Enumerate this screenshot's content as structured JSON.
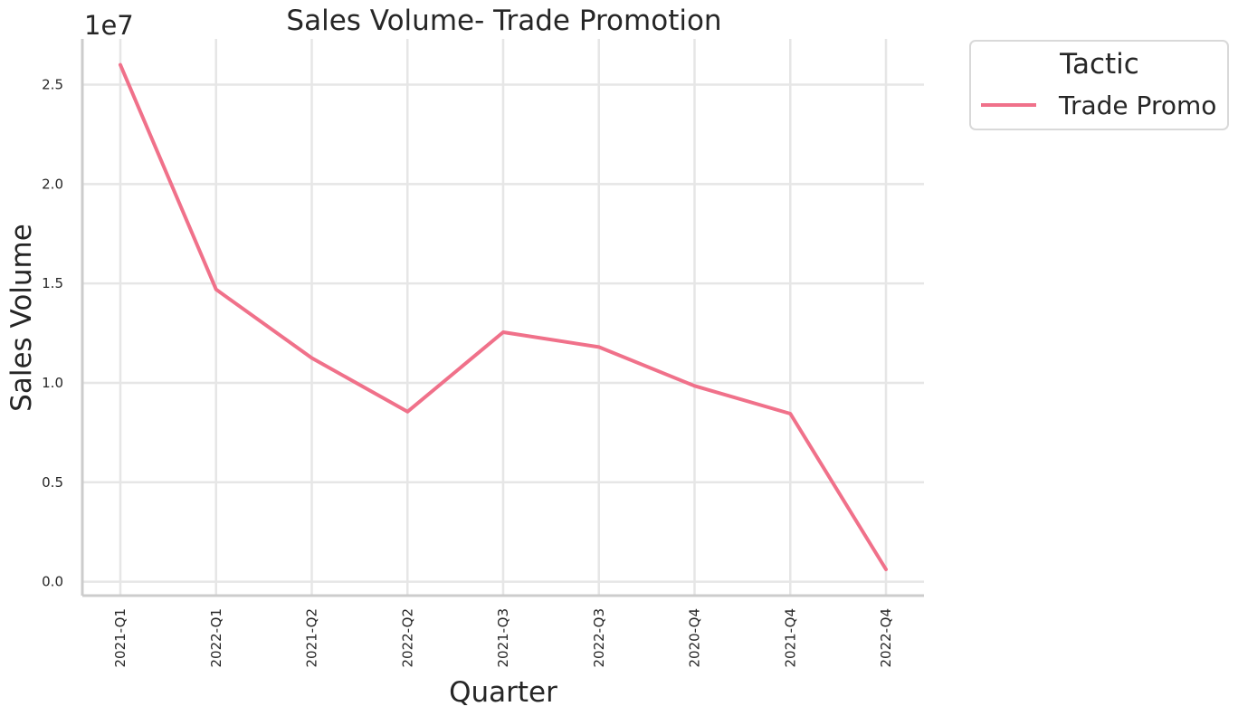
{
  "chart_data": {
    "type": "line",
    "title": "Sales Volume- Trade Promotion",
    "xlabel": "Quarter",
    "ylabel": "Sales Volume",
    "y_offset_label": "1e7",
    "categories": [
      "2021-Q1",
      "2022-Q1",
      "2021-Q2",
      "2022-Q2",
      "2021-Q3",
      "2022-Q3",
      "2020-Q4",
      "2021-Q4",
      "2022-Q4"
    ],
    "series": [
      {
        "name": "Trade Promo",
        "color": "#f0718a",
        "values": [
          26000000,
          14700000,
          11250000,
          8550000,
          12550000,
          11800000,
          9850000,
          8450000,
          620000
        ]
      }
    ],
    "ylim": [
      -700000,
      27300000
    ],
    "yticks": [
      0,
      5000000,
      10000000,
      15000000,
      20000000,
      25000000
    ],
    "ytick_labels": [
      "0.0",
      "0.5",
      "1.0",
      "1.5",
      "2.0",
      "2.5"
    ],
    "grid": true,
    "legend": {
      "title": "Tactic",
      "placement": "outside-top-right"
    }
  }
}
